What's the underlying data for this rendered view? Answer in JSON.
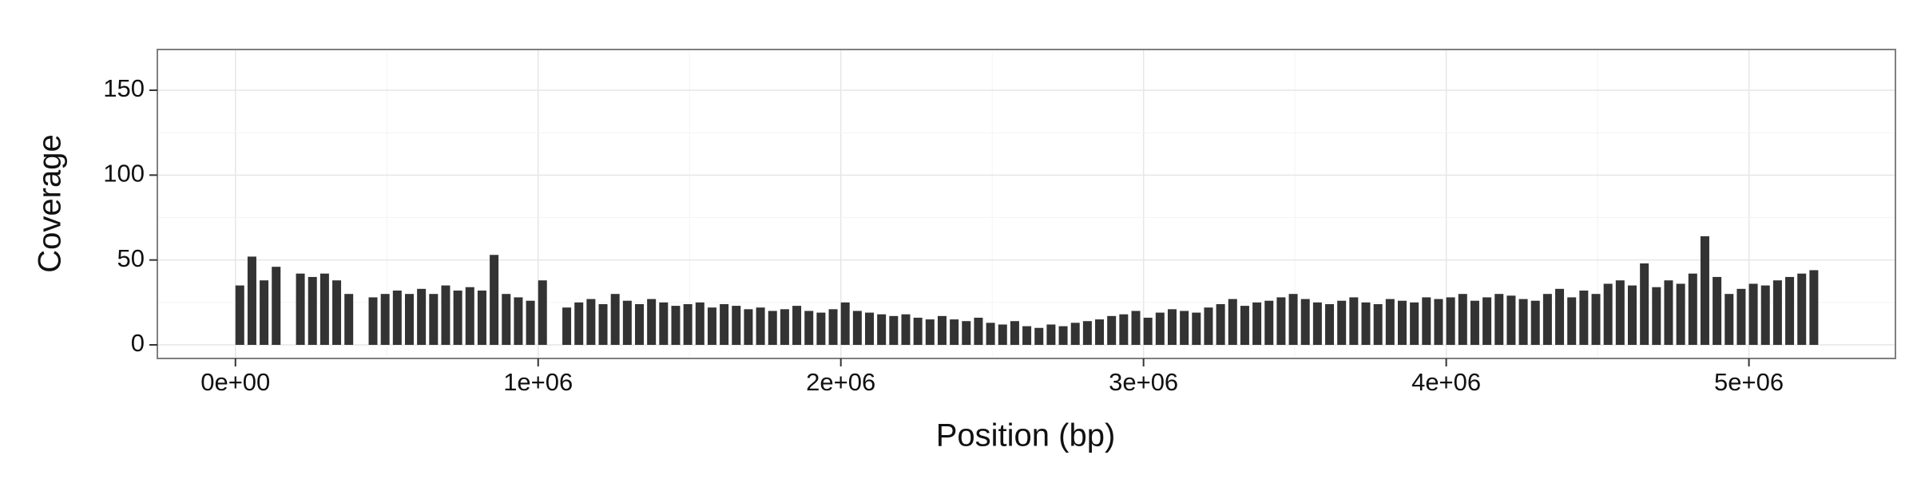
{
  "chart_data": {
    "type": "bar",
    "x_label": "Position (bp)",
    "y_label": "Coverage",
    "color": "#333333",
    "grid": true,
    "xlim": [
      -258000,
      5484000
    ],
    "ylim": [
      -8,
      174
    ],
    "xticks": [
      {
        "value": 0,
        "label": "0e+00"
      },
      {
        "value": 1000000,
        "label": "1e+06"
      },
      {
        "value": 2000000,
        "label": "2e+06"
      },
      {
        "value": 3000000,
        "label": "3e+06"
      },
      {
        "value": 4000000,
        "label": "4e+06"
      },
      {
        "value": 5000000,
        "label": "5e+06"
      }
    ],
    "yticks": [
      0,
      50,
      100,
      150
    ],
    "x": [
      0,
      40000,
      80000,
      120000,
      200000,
      240000,
      280000,
      320000,
      360000,
      440000,
      480000,
      520000,
      560000,
      600000,
      640000,
      680000,
      720000,
      760000,
      800000,
      840000,
      880000,
      920000,
      960000,
      1000000,
      1080000,
      1120000,
      1160000,
      1200000,
      1240000,
      1280000,
      1320000,
      1360000,
      1400000,
      1440000,
      1480000,
      1520000,
      1560000,
      1600000,
      1640000,
      1680000,
      1720000,
      1760000,
      1800000,
      1840000,
      1880000,
      1920000,
      1960000,
      2000000,
      2040000,
      2080000,
      2120000,
      2160000,
      2200000,
      2240000,
      2280000,
      2320000,
      2360000,
      2400000,
      2440000,
      2480000,
      2520000,
      2560000,
      2600000,
      2640000,
      2680000,
      2720000,
      2760000,
      2800000,
      2840000,
      2880000,
      2920000,
      2960000,
      3000000,
      3040000,
      3080000,
      3120000,
      3160000,
      3200000,
      3240000,
      3280000,
      3320000,
      3360000,
      3400000,
      3440000,
      3480000,
      3520000,
      3560000,
      3600000,
      3640000,
      3680000,
      3720000,
      3760000,
      3800000,
      3840000,
      3880000,
      3920000,
      3960000,
      4000000,
      4040000,
      4080000,
      4120000,
      4160000,
      4200000,
      4240000,
      4280000,
      4320000,
      4360000,
      4400000,
      4440000,
      4480000,
      4520000,
      4560000,
      4600000,
      4640000,
      4680000,
      4720000,
      4760000,
      4800000,
      4840000,
      4880000,
      4920000,
      4960000,
      5000000,
      5040000,
      5080000,
      5120000,
      5160000,
      5200000
    ],
    "values": [
      35,
      52,
      38,
      46,
      42,
      40,
      42,
      38,
      30,
      28,
      30,
      32,
      30,
      33,
      30,
      35,
      32,
      34,
      32,
      53,
      30,
      28,
      26,
      38,
      22,
      25,
      27,
      24,
      30,
      26,
      24,
      27,
      25,
      23,
      24,
      25,
      22,
      24,
      23,
      21,
      22,
      20,
      21,
      23,
      20,
      19,
      21,
      25,
      20,
      19,
      18,
      17,
      18,
      16,
      15,
      17,
      15,
      14,
      16,
      13,
      12,
      14,
      11,
      10,
      12,
      11,
      13,
      14,
      15,
      17,
      18,
      20,
      16,
      19,
      21,
      20,
      19,
      22,
      24,
      27,
      23,
      25,
      26,
      28,
      30,
      27,
      25,
      24,
      26,
      28,
      25,
      24,
      27,
      26,
      25,
      28,
      27,
      28,
      30,
      26,
      28,
      30,
      29,
      27,
      26,
      30,
      33,
      28,
      32,
      30,
      36,
      38,
      35,
      48,
      34,
      38,
      36,
      42,
      64,
      40,
      30,
      33,
      36,
      35,
      38,
      40,
      42,
      44
    ]
  }
}
